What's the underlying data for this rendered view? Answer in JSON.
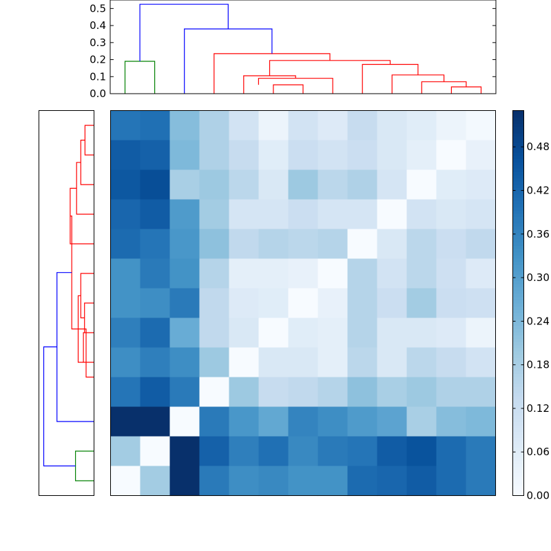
{
  "chart_data": [
    {
      "type": "dendrogram",
      "position": "top",
      "ylim": [
        0,
        0.55
      ],
      "yticks": [
        "0.0",
        "0.1",
        "0.2",
        "0.3",
        "0.4",
        "0.5"
      ],
      "ytick_values": [
        0.0,
        0.1,
        0.2,
        0.3,
        0.4,
        0.5
      ],
      "links": [
        {
          "a": 0.5,
          "b": 1.5,
          "h": 0.19,
          "ha": 0,
          "hb": 0,
          "color": "#008000"
        },
        {
          "a": 5.5,
          "b": 6.5,
          "h": 0.052,
          "ha": 0,
          "hb": 0,
          "color": "#ff0000"
        },
        {
          "a": 5.0,
          "b": 7.5,
          "h": 0.09,
          "ha": 0.052,
          "hb": 0,
          "color": "#ff0000"
        },
        {
          "a": 4.5,
          "b": 6.25,
          "h": 0.105,
          "ha": 0,
          "hb": 0.09,
          "color": "#ff0000"
        },
        {
          "a": 11.5,
          "b": 12.5,
          "h": 0.04,
          "ha": 0,
          "hb": 0,
          "color": "#ff0000"
        },
        {
          "a": 10.5,
          "b": 12.0,
          "h": 0.07,
          "ha": 0,
          "hb": 0.04,
          "color": "#ff0000"
        },
        {
          "a": 9.5,
          "b": 11.25,
          "h": 0.11,
          "ha": 0,
          "hb": 0.07,
          "color": "#ff0000"
        },
        {
          "a": 8.5,
          "b": 10.375,
          "h": 0.172,
          "ha": 0,
          "hb": 0.11,
          "color": "#ff0000"
        },
        {
          "a": 5.375,
          "b": 9.4375,
          "h": 0.195,
          "ha": 0.105,
          "hb": 0.172,
          "color": "#ff0000"
        },
        {
          "a": 3.5,
          "b": 7.40625,
          "h": 0.235,
          "ha": 0,
          "hb": 0.195,
          "color": "#ff0000"
        },
        {
          "a": 2.5,
          "b": 5.453125,
          "h": 0.38,
          "ha": 0,
          "hb": 0.235,
          "color": "#0000ff"
        },
        {
          "a": 1.0,
          "b": 3.9765625,
          "h": 0.525,
          "ha": 0.19,
          "hb": 0.38,
          "color": "#0000ff"
        }
      ]
    },
    {
      "type": "dendrogram",
      "position": "left",
      "links": [
        {
          "a": 0.5,
          "b": 1.5,
          "h": 0.17,
          "ha": 0,
          "hb": 0,
          "color": "#ff0000"
        },
        {
          "a": 1.0,
          "b": 2.5,
          "h": 0.25,
          "ha": 0.17,
          "hb": 0,
          "color": "#ff0000"
        },
        {
          "a": 1.75,
          "b": 3.5,
          "h": 0.33,
          "ha": 0.25,
          "hb": 0,
          "color": "#ff0000"
        },
        {
          "a": 2.625,
          "b": 4.5,
          "h": 0.45,
          "ha": 0.33,
          "hb": 0,
          "color": "#ff0000"
        },
        {
          "a": 6.5,
          "b": 7.5,
          "h": 0.18,
          "ha": 0,
          "hb": 0,
          "color": "#ff0000"
        },
        {
          "a": 5.5,
          "b": 7.0,
          "h": 0.25,
          "ha": 0,
          "hb": 0.18,
          "color": "#ff0000"
        },
        {
          "a": 7.5,
          "b": 8.5,
          "h": 0.2,
          "ha": 0.18,
          "hb": 0,
          "color": "#ff0000"
        },
        {
          "a": 6.25,
          "b": 8.5,
          "h": 0.3,
          "ha": 0.25,
          "hb": 0.2,
          "color": "#ff0000"
        },
        {
          "a": 7.375,
          "b": 9.0,
          "h": 0.15,
          "ha": 0.3,
          "hb": 0,
          "color": "#ff0000"
        },
        {
          "a": 3.56,
          "b": 7.375,
          "h": 0.42,
          "ha": 0.45,
          "hb": 0.3,
          "color": "#ff0000"
        },
        {
          "a": 5.47,
          "b": 10.5,
          "h": 0.7,
          "ha": 0.42,
          "hb": 0,
          "color": "#0000ff"
        },
        {
          "a": 11.5,
          "b": 12.5,
          "h": 0.35,
          "ha": 0,
          "hb": 0,
          "color": "#008000"
        },
        {
          "a": 7.98,
          "b": 12.0,
          "h": 0.95,
          "ha": 0.7,
          "hb": 0.35,
          "color": "#0000ff"
        }
      ],
      "hmax": 1.0
    },
    {
      "type": "heatmap",
      "colormap": "Blues",
      "vmin": 0.0,
      "vmax": 0.53,
      "rows": 13,
      "cols": 13,
      "values": [
        [
          0.39,
          0.4,
          0.23,
          0.17,
          0.1,
          0.03,
          0.1,
          0.07,
          0.13,
          0.08,
          0.06,
          0.03,
          0.01
        ],
        [
          0.44,
          0.43,
          0.24,
          0.17,
          0.13,
          0.06,
          0.12,
          0.1,
          0.12,
          0.08,
          0.05,
          0.0,
          0.04
        ],
        [
          0.45,
          0.47,
          0.18,
          0.2,
          0.15,
          0.08,
          0.2,
          0.15,
          0.17,
          0.09,
          0.0,
          0.06,
          0.07
        ],
        [
          0.42,
          0.44,
          0.31,
          0.19,
          0.09,
          0.09,
          0.12,
          0.09,
          0.09,
          0.0,
          0.1,
          0.08,
          0.09
        ],
        [
          0.41,
          0.39,
          0.32,
          0.22,
          0.14,
          0.16,
          0.15,
          0.16,
          0.0,
          0.08,
          0.15,
          0.12,
          0.14
        ],
        [
          0.33,
          0.38,
          0.33,
          0.16,
          0.05,
          0.05,
          0.04,
          0.0,
          0.16,
          0.1,
          0.15,
          0.11,
          0.07
        ],
        [
          0.33,
          0.34,
          0.38,
          0.14,
          0.07,
          0.06,
          0.0,
          0.04,
          0.16,
          0.12,
          0.19,
          0.12,
          0.11
        ],
        [
          0.37,
          0.41,
          0.27,
          0.14,
          0.08,
          0.0,
          0.06,
          0.05,
          0.16,
          0.08,
          0.08,
          0.07,
          0.03
        ],
        [
          0.34,
          0.37,
          0.34,
          0.2,
          0.0,
          0.08,
          0.08,
          0.05,
          0.15,
          0.08,
          0.15,
          0.13,
          0.1
        ],
        [
          0.39,
          0.44,
          0.38,
          0.0,
          0.2,
          0.13,
          0.14,
          0.16,
          0.22,
          0.18,
          0.2,
          0.17,
          0.17
        ],
        [
          0.53,
          0.53,
          0.0,
          0.38,
          0.32,
          0.28,
          0.36,
          0.34,
          0.31,
          0.29,
          0.18,
          0.23,
          0.24
        ],
        [
          0.19,
          0.0,
          0.53,
          0.43,
          0.37,
          0.4,
          0.35,
          0.38,
          0.39,
          0.44,
          0.46,
          0.41,
          0.38
        ],
        [
          0.0,
          0.19,
          0.53,
          0.38,
          0.34,
          0.35,
          0.33,
          0.33,
          0.41,
          0.42,
          0.44,
          0.41,
          0.38
        ]
      ]
    },
    {
      "type": "colorbar",
      "vmin": 0.0,
      "vmax": 0.53,
      "tick_values": [
        0.0,
        0.06,
        0.12,
        0.18,
        0.24,
        0.3,
        0.36,
        0.42,
        0.48
      ],
      "tick_labels": [
        "0.00",
        "0.06",
        "0.12",
        "0.18",
        "0.24",
        "0.30",
        "0.36",
        "0.42",
        "0.48"
      ]
    }
  ]
}
